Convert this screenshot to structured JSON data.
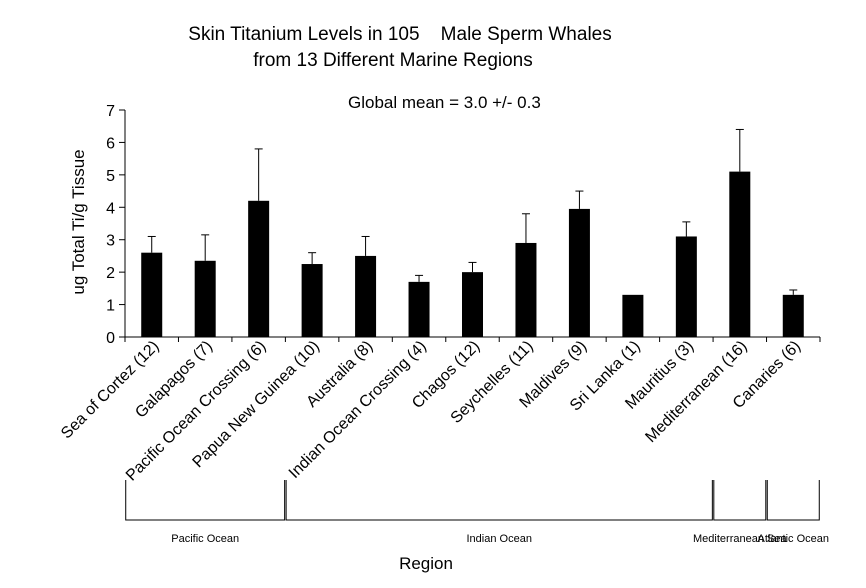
{
  "chart_data": {
    "type": "bar",
    "title_line1": "Skin Titanium Levels in 105    Male Sperm Whales",
    "title_line2": "from 13 Different Marine Regions",
    "annotation": "Global mean = 3.0 +/- 0.3",
    "xlabel": "Region",
    "ylabel": "ug Total Ti/g Tissue",
    "ylim": [
      0,
      7
    ],
    "yticks": [
      0,
      1,
      2,
      3,
      4,
      5,
      6,
      7
    ],
    "grid": false,
    "categories": [
      "Sea of Cortez (12)",
      "Galapagos (7)",
      "Pacific Ocean Crossing (6)",
      "Papua New Guinea (10)",
      "Australia (8)",
      "Indian Ocean Crossing (4)",
      "Chagos (12)",
      "Seychelles (11)",
      "Maldives (9)",
      "Sri Lanka (1)",
      "Mauritius (3)",
      "Mediterranean (16)",
      "Canaries (6)"
    ],
    "values": [
      2.6,
      2.35,
      4.2,
      2.25,
      2.5,
      1.7,
      2.0,
      2.9,
      3.95,
      1.3,
      3.1,
      5.1,
      1.3
    ],
    "error": [
      0.5,
      0.8,
      1.6,
      0.35,
      0.6,
      0.2,
      0.3,
      0.9,
      0.55,
      0.0,
      0.45,
      1.3,
      0.15
    ],
    "groups": [
      {
        "label": "Pacific Ocean",
        "from": 0,
        "to": 2
      },
      {
        "label": "Indian Ocean",
        "from": 3,
        "to": 10
      },
      {
        "label": "Mediterranean Sea",
        "from": 11,
        "to": 11
      },
      {
        "label": "Atlantic Ocean",
        "from": 12,
        "to": 12
      }
    ]
  }
}
